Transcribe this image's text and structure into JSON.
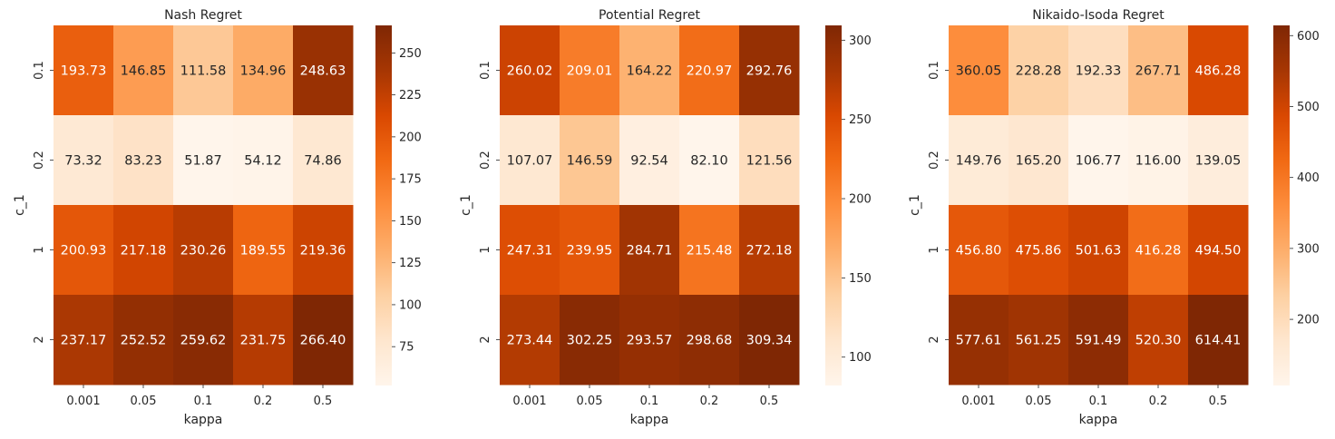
{
  "chart_data": [
    {
      "type": "heatmap",
      "title": "Nash Regret",
      "xlabel": "kappa",
      "ylabel": "c_1",
      "x_categories": [
        "0.001",
        "0.05",
        "0.1",
        "0.2",
        "0.5"
      ],
      "y_categories": [
        "0.1",
        "0.2",
        "1",
        "2"
      ],
      "values": [
        [
          193.73,
          146.85,
          111.58,
          134.96,
          248.63
        ],
        [
          73.32,
          83.23,
          51.87,
          54.12,
          74.86
        ],
        [
          200.93,
          217.18,
          230.26,
          189.55,
          219.36
        ],
        [
          237.17,
          252.52,
          259.62,
          231.75,
          266.4
        ]
      ],
      "colorbar": {
        "range": [
          51.87,
          266.4
        ],
        "ticks": [
          75,
          100,
          125,
          150,
          175,
          200,
          225,
          250
        ]
      }
    },
    {
      "type": "heatmap",
      "title": "Potential Regret",
      "xlabel": "kappa",
      "ylabel": "c_1",
      "x_categories": [
        "0.001",
        "0.05",
        "0.1",
        "0.2",
        "0.5"
      ],
      "y_categories": [
        "0.1",
        "0.2",
        "1",
        "2"
      ],
      "values": [
        [
          260.02,
          209.01,
          164.22,
          220.97,
          292.76
        ],
        [
          107.07,
          146.59,
          92.54,
          82.1,
          121.56
        ],
        [
          247.31,
          239.95,
          284.71,
          215.48,
          272.18
        ],
        [
          273.44,
          302.25,
          293.57,
          298.68,
          309.34
        ]
      ],
      "colorbar": {
        "range": [
          82.1,
          309.34
        ],
        "ticks": [
          100,
          150,
          200,
          250,
          300
        ]
      }
    },
    {
      "type": "heatmap",
      "title": "Nikaido-Isoda Regret",
      "xlabel": "kappa",
      "ylabel": "c_1",
      "x_categories": [
        "0.001",
        "0.05",
        "0.1",
        "0.2",
        "0.5"
      ],
      "y_categories": [
        "0.1",
        "0.2",
        "1",
        "2"
      ],
      "values": [
        [
          360.05,
          228.28,
          192.33,
          267.71,
          486.28
        ],
        [
          149.76,
          165.2,
          106.77,
          116.0,
          139.05
        ],
        [
          456.8,
          475.86,
          501.63,
          416.28,
          494.5
        ],
        [
          577.61,
          561.25,
          591.49,
          520.3,
          614.41
        ]
      ],
      "colorbar": {
        "range": [
          106.77,
          614.41
        ],
        "ticks": [
          200,
          300,
          400,
          500,
          600
        ]
      }
    }
  ],
  "style": {
    "colormap": "Oranges",
    "colormap_stops": [
      "#fff5eb",
      "#fee6ce",
      "#fdd0a2",
      "#fdae6b",
      "#fd8d3c",
      "#f16913",
      "#d94801",
      "#a63603",
      "#7f2704"
    ],
    "text_dark": "#262626",
    "text_light": "#ffffff"
  }
}
